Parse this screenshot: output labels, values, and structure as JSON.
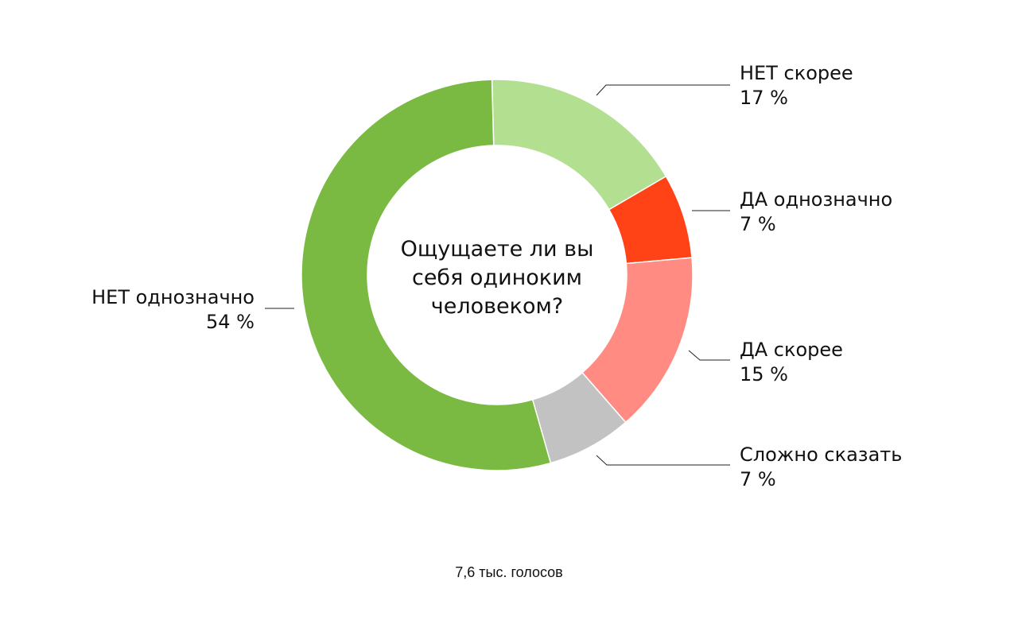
{
  "chart_data": {
    "type": "pie",
    "style": "donut",
    "center_text": [
      "Ощущаете ли вы",
      "себя одиноким",
      "человеком?"
    ],
    "slices": [
      {
        "label": "НЕТ скорее",
        "value_text": "17 %",
        "value": 17,
        "color": "#b3df91"
      },
      {
        "label": "ДА однозначно",
        "value_text": "7 %",
        "value": 7,
        "color": "#ff4316"
      },
      {
        "label": "ДА скорее",
        "value_text": "15 %",
        "value": 15,
        "color": "#ff8b83"
      },
      {
        "label": "Сложно сказать",
        "value_text": "7 %",
        "value": 7,
        "color": "#c2c2c2"
      },
      {
        "label": "НЕТ однозначно",
        "value_text": "54 %",
        "value": 54,
        "color": "#7aba42"
      }
    ],
    "footer": "7,6 тыс. голосов"
  }
}
